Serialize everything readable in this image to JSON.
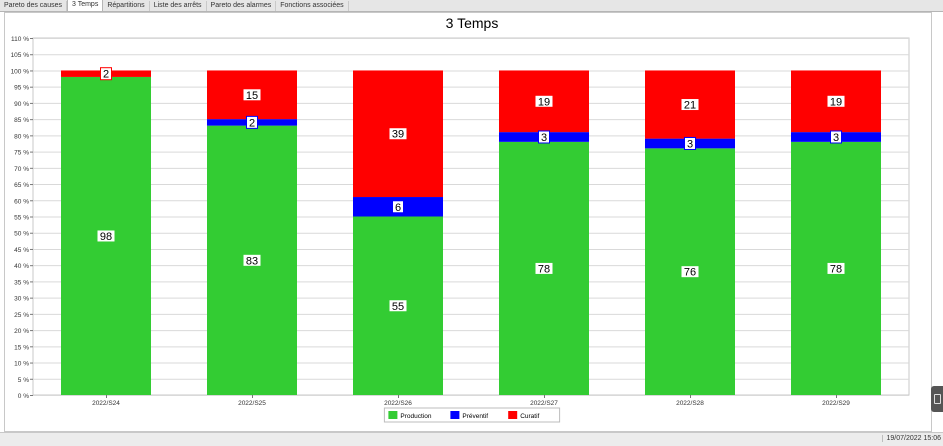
{
  "tabs": [
    {
      "label": "Pareto des causes",
      "active": false
    },
    {
      "label": "3 Temps",
      "active": true
    },
    {
      "label": "Répartitions",
      "active": false
    },
    {
      "label": "Liste des arrêts",
      "active": false
    },
    {
      "label": "Pareto des alarmes",
      "active": false
    },
    {
      "label": "Fonctions associées",
      "active": false
    }
  ],
  "status": {
    "datetime": "19/07/2022 15:06"
  },
  "chart_data": {
    "type": "bar",
    "stacked": true,
    "title": "3 Temps",
    "xlabel": "",
    "ylabel": "",
    "ylim": [
      0,
      110
    ],
    "y_ticks": [
      0,
      5,
      10,
      15,
      20,
      25,
      30,
      35,
      40,
      45,
      50,
      55,
      60,
      65,
      70,
      75,
      80,
      85,
      90,
      95,
      100,
      105,
      110
    ],
    "y_tick_suffix": " %",
    "grid": true,
    "legend_position": "bottom-center",
    "categories": [
      "2022/S24",
      "2022/S25",
      "2022/S26",
      "2022/S27",
      "2022/S28",
      "2022/S29"
    ],
    "series": [
      {
        "name": "Production",
        "color": "#33cc33",
        "label_border": "#33cc33",
        "values": [
          98,
          83,
          55,
          78,
          76,
          78
        ]
      },
      {
        "name": "Préventif",
        "color": "#0000ff",
        "label_border": "#0000ff",
        "values": [
          0,
          2,
          6,
          3,
          3,
          3
        ]
      },
      {
        "name": "Curatif",
        "color": "#ff0000",
        "label_border": "#ff0000",
        "values": [
          2,
          15,
          39,
          19,
          21,
          19
        ]
      }
    ]
  }
}
